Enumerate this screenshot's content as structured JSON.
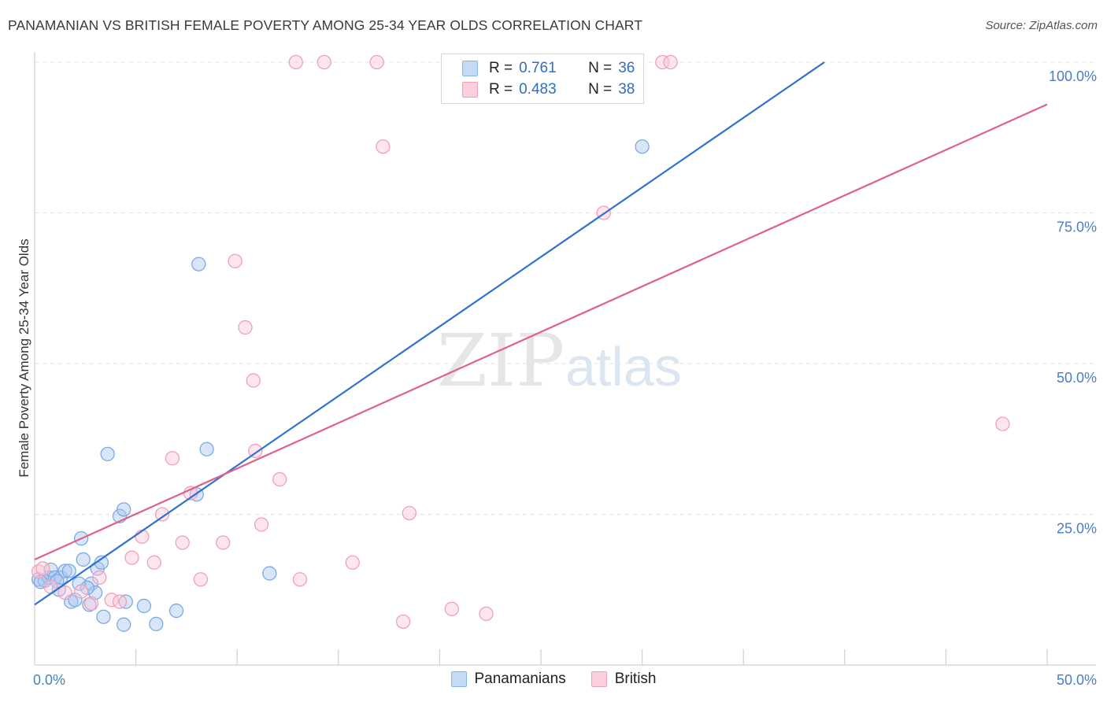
{
  "title": "PANAMANIAN VS BRITISH FEMALE POVERTY AMONG 25-34 YEAR OLDS CORRELATION CHART",
  "source": "Source: ZipAtlas.com",
  "watermark": {
    "zip": "ZIP",
    "atlas": "atlas"
  },
  "legend": {
    "rows": [
      {
        "r_label": "R =",
        "r_value": "0.761",
        "n_label": "N =",
        "n_value": "36",
        "color": "#8ab4e8",
        "fill": "#c5dbf5"
      },
      {
        "r_label": "R =",
        "r_value": "0.483",
        "n_label": "N =",
        "n_value": "38",
        "color": "#f0a0b8",
        "fill": "#fbd0dc"
      }
    ]
  },
  "bottom_legend": [
    {
      "label": "Panamanians",
      "color": "#8ab4e8",
      "fill": "#c5dbf5"
    },
    {
      "label": "British",
      "color": "#f0a0b8",
      "fill": "#fbd0dc"
    }
  ],
  "chart_data": {
    "type": "scatter",
    "title": "PANAMANIAN VS BRITISH FEMALE POVERTY AMONG 25-34 YEAR OLDS CORRELATION CHART",
    "xlabel": "",
    "ylabel": "Female Poverty Among 25-34 Year Olds",
    "xlim": [
      0,
      50
    ],
    "ylim": [
      0,
      100
    ],
    "x_tick_labels": [
      "0.0%",
      "50.0%"
    ],
    "y_ticks": [
      25,
      50,
      75,
      100
    ],
    "y_tick_labels": [
      "25.0%",
      "50.0%",
      "75.0%",
      "100.0%"
    ],
    "grid": true,
    "series": [
      {
        "name": "Panamanians",
        "color": "#2f72cf",
        "point_stroke": "#7aaae6",
        "point_fill": "rgba(170,200,240,0.45)",
        "trend": {
          "x": [
            0,
            39
          ],
          "y": [
            10,
            100
          ]
        },
        "points": [
          [
            0.2,
            14.2
          ],
          [
            0.5,
            14
          ],
          [
            0.7,
            14.5
          ],
          [
            0.8,
            15.8
          ],
          [
            1,
            14.5
          ],
          [
            1.2,
            12.5
          ],
          [
            1.3,
            14.5
          ],
          [
            1.5,
            15.6
          ],
          [
            1.7,
            15.6
          ],
          [
            1.8,
            10.5
          ],
          [
            2,
            10.8
          ],
          [
            2.2,
            13.5
          ],
          [
            2.3,
            21
          ],
          [
            2.4,
            17.5
          ],
          [
            2.7,
            10
          ],
          [
            2.8,
            13.5
          ],
          [
            3,
            12
          ],
          [
            3.1,
            16
          ],
          [
            3.3,
            17
          ],
          [
            3.4,
            8
          ],
          [
            3.6,
            35
          ],
          [
            4.2,
            24.7
          ],
          [
            4.4,
            25.8
          ],
          [
            4.4,
            6.7
          ],
          [
            4.5,
            10.5
          ],
          [
            5.4,
            9.8
          ],
          [
            6,
            6.8
          ],
          [
            7,
            9
          ],
          [
            8.1,
            66.5
          ],
          [
            8,
            28.3
          ],
          [
            8.5,
            35.8
          ],
          [
            11.6,
            15.2
          ],
          [
            30,
            86
          ],
          [
            0.3,
            13.8
          ],
          [
            1.1,
            13.9
          ],
          [
            2.6,
            12.8
          ]
        ]
      },
      {
        "name": "British",
        "color": "#e0608a",
        "point_stroke": "#f0a0b8",
        "point_fill": "rgba(250,200,215,0.45)",
        "trend": {
          "x": [
            0,
            50
          ],
          "y": [
            17.5,
            93
          ]
        },
        "points": [
          [
            0.2,
            15.5
          ],
          [
            0.8,
            13
          ],
          [
            1.5,
            12
          ],
          [
            2.3,
            12.2
          ],
          [
            2.8,
            10.2
          ],
          [
            3.2,
            14.5
          ],
          [
            3.8,
            10.8
          ],
          [
            4.2,
            10.5
          ],
          [
            4.8,
            17.8
          ],
          [
            5.3,
            21.3
          ],
          [
            5.9,
            17
          ],
          [
            6.3,
            25
          ],
          [
            6.8,
            34.3
          ],
          [
            7.3,
            20.3
          ],
          [
            7.7,
            28.5
          ],
          [
            8.2,
            14.2
          ],
          [
            9.3,
            20.3
          ],
          [
            9.9,
            67
          ],
          [
            10.4,
            56
          ],
          [
            10.8,
            47.2
          ],
          [
            10.9,
            35.5
          ],
          [
            11.2,
            23.3
          ],
          [
            12.1,
            30.8
          ],
          [
            12.9,
            100
          ],
          [
            13.1,
            14.2
          ],
          [
            14.3,
            100
          ],
          [
            15.7,
            17
          ],
          [
            16.9,
            100
          ],
          [
            17.2,
            86
          ],
          [
            18.2,
            7.2
          ],
          [
            18.5,
            25.2
          ],
          [
            20.6,
            9.3
          ],
          [
            22.3,
            8.5
          ],
          [
            28.1,
            75
          ],
          [
            31,
            100
          ],
          [
            31.4,
            100
          ],
          [
            47.8,
            40
          ],
          [
            0.4,
            16
          ]
        ]
      }
    ]
  }
}
